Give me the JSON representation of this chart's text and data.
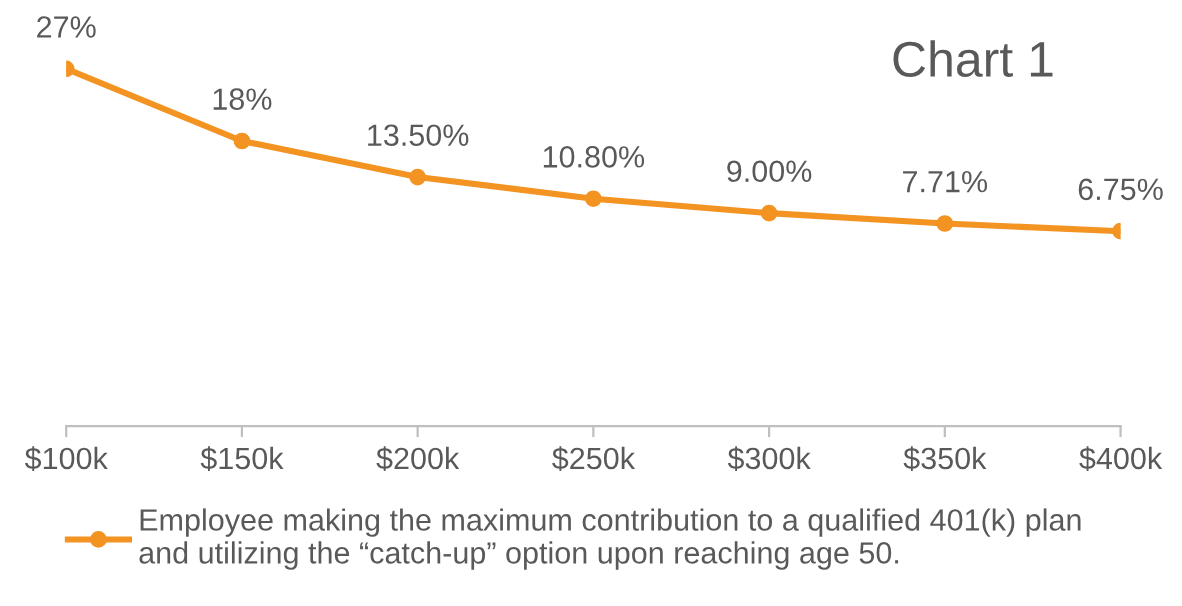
{
  "chart_data": {
    "type": "line",
    "title": "Chart 1",
    "categories": [
      "$100k",
      "$150k",
      "$200k",
      "$250k",
      "$300k",
      "$350k",
      "$400k"
    ],
    "series": [
      {
        "name": "Employee making the maximum contribution to a qualified 401(k) plan\nand utilizing the “catch-up” option upon reaching age 50.",
        "color": "#f39322",
        "values": [
          27,
          18,
          13.5,
          10.8,
          9.0,
          7.71,
          6.75
        ],
        "value_labels": [
          "27%",
          "18%",
          "13.50%",
          "10.80%",
          "9.00%",
          "7.71%",
          "6.75%"
        ]
      }
    ],
    "tick_labels": "x",
    "marker": "circle",
    "line_style": "solid",
    "legend": "bottom",
    "grid": false
  }
}
